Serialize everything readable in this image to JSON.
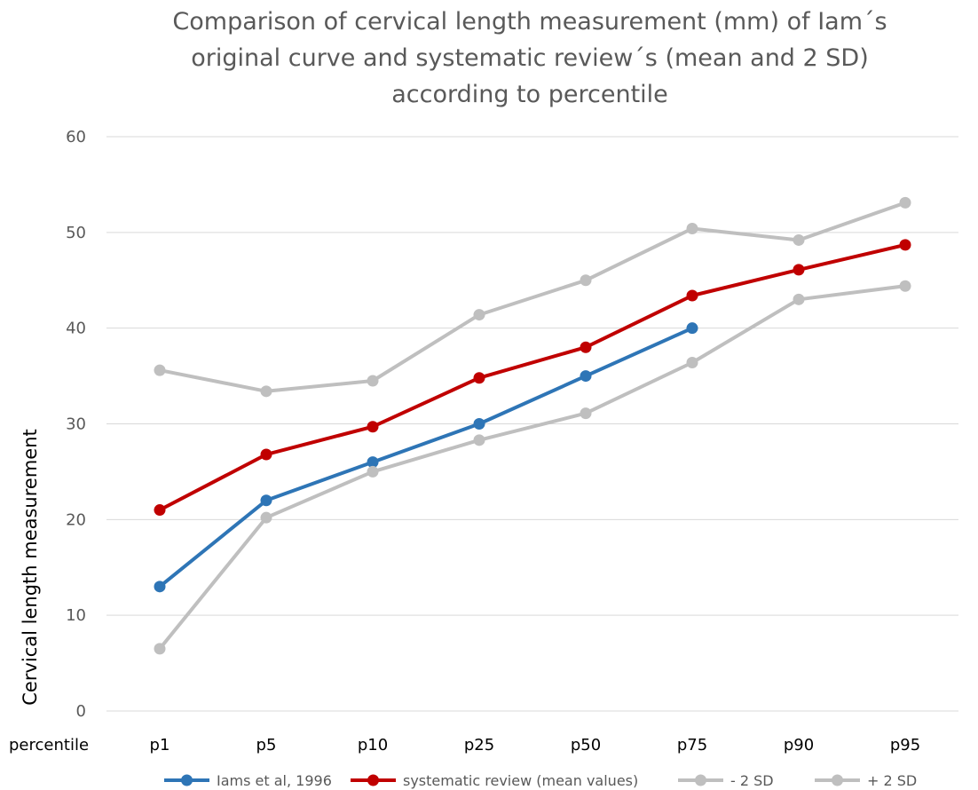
{
  "chart_data": {
    "type": "line",
    "title_lines": [
      "Comparison of cervical length measurement (mm) of Iam´s",
      "original curve and systematic review´s (mean and 2 SD)",
      "according to percentile"
    ],
    "ylabel": "Cervical length measurement",
    "xlabel": "percentile",
    "categories": [
      "p1",
      "p5",
      "p10",
      "p25",
      "p50",
      "p75",
      "p90",
      "p95"
    ],
    "ylim": [
      0,
      60
    ],
    "yticks": [
      0,
      10,
      20,
      30,
      40,
      50,
      60
    ],
    "grid": true,
    "legend_position": "bottom",
    "series": [
      {
        "name": "Iams et al, 1996",
        "color": "#2e75b6",
        "values": [
          13,
          22,
          26,
          30,
          35,
          40,
          null,
          null
        ]
      },
      {
        "name": "systematic review (mean values)",
        "color": "#c00000",
        "values": [
          21,
          26.8,
          29.7,
          34.8,
          38,
          43.4,
          46.1,
          48.7
        ]
      },
      {
        "name": "- 2 SD",
        "color": "#bfbfbf",
        "values": [
          6.5,
          20.2,
          25,
          28.3,
          31.1,
          36.4,
          43,
          44.4
        ]
      },
      {
        "name": "+ 2 SD",
        "color": "#bfbfbf",
        "values": [
          35.6,
          33.4,
          34.5,
          41.4,
          45,
          50.4,
          49.2,
          53.1
        ]
      }
    ]
  }
}
